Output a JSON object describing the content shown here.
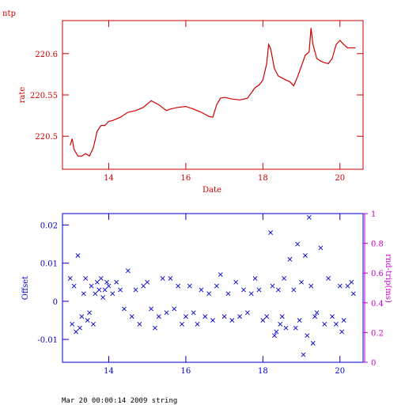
{
  "footer": {
    "text": "Mar 20 00:00:14 2009 string"
  },
  "chart_data": [
    {
      "type": "line",
      "title": "ntp",
      "xlabel": "Date",
      "ylabel": "rate",
      "xlim": [
        12.8,
        20.6
      ],
      "ylim": [
        220.46,
        220.64
      ],
      "xticks": [
        14,
        16,
        18,
        20
      ],
      "yticks": [
        220.5,
        220.55,
        220.6
      ],
      "ytick_labels": [
        "220.5",
        "220.55",
        "220.6"
      ],
      "grid": false,
      "color": "#cc0000",
      "series": [
        {
          "x": [
            13.0,
            13.05,
            13.1,
            13.2,
            13.3,
            13.4,
            13.5,
            13.6,
            13.7,
            13.8,
            13.9,
            14.0,
            14.1,
            14.3,
            14.5,
            14.7,
            14.9,
            15.1,
            15.3,
            15.5,
            15.6,
            15.8,
            16.0,
            16.2,
            16.4,
            16.6,
            16.7,
            16.8,
            16.9,
            17.0,
            17.2,
            17.4,
            17.6,
            17.8,
            17.9,
            18.0,
            18.1,
            18.15,
            18.2,
            18.3,
            18.4,
            18.6,
            18.7,
            18.8,
            18.9,
            19.0,
            19.1,
            19.2,
            19.25,
            19.3,
            19.4,
            19.5,
            19.6,
            19.7,
            19.8,
            19.9,
            20.0,
            20.1,
            20.2,
            20.3,
            20.4
          ],
          "y": [
            220.489,
            220.497,
            220.484,
            220.476,
            220.476,
            220.479,
            220.476,
            220.486,
            220.506,
            220.513,
            220.513,
            220.518,
            220.519,
            220.523,
            220.529,
            220.531,
            220.535,
            220.543,
            220.538,
            220.531,
            220.533,
            220.535,
            220.536,
            220.533,
            220.529,
            220.524,
            220.523,
            220.538,
            220.546,
            220.547,
            220.545,
            220.544,
            220.546,
            220.559,
            220.562,
            220.568,
            220.588,
            220.611,
            220.606,
            220.582,
            220.573,
            220.568,
            220.566,
            220.561,
            220.572,
            220.585,
            220.598,
            220.602,
            220.631,
            220.611,
            220.594,
            220.591,
            220.589,
            220.588,
            220.594,
            220.611,
            220.616,
            220.611,
            220.607,
            220.607,
            220.607
          ]
        }
      ]
    },
    {
      "type": "scatter",
      "ylabel": "Offset",
      "y2label": "rnd-trip(ms)",
      "xlim": [
        12.8,
        20.6
      ],
      "ylim": [
        -0.016,
        0.023
      ],
      "y2lim": [
        0,
        1
      ],
      "xticks": [
        14,
        16,
        18,
        20
      ],
      "yticks": [
        -0.01,
        0,
        0.01,
        0.02
      ],
      "ytick_labels": [
        "-0.01",
        "0",
        "0.01",
        "0.02"
      ],
      "y2ticks": [
        0,
        0.2,
        0.4,
        0.6,
        0.8,
        1
      ],
      "y2tick_labels": [
        "0",
        "0.2",
        "0.4",
        "0.6",
        "0.8",
        "1"
      ],
      "grid": false,
      "marker": "x",
      "color": "#0000cc",
      "color_secondary": "#cc00cc",
      "series": [
        {
          "x": [
            13.0,
            13.05,
            13.1,
            13.15,
            13.2,
            13.25,
            13.3,
            13.35,
            13.4,
            13.45,
            13.5,
            13.55,
            13.6,
            13.65,
            13.7,
            13.75,
            13.8,
            13.85,
            13.9,
            13.95,
            14.0,
            14.1,
            14.2,
            14.3,
            14.4,
            14.5,
            14.6,
            14.7,
            14.8,
            14.9,
            15.0,
            15.1,
            15.2,
            15.3,
            15.4,
            15.5,
            15.6,
            15.7,
            15.8,
            15.9,
            16.0,
            16.1,
            16.2,
            16.3,
            16.4,
            16.5,
            16.6,
            16.7,
            16.8,
            16.9,
            17.0,
            17.1,
            17.2,
            17.3,
            17.4,
            17.5,
            17.6,
            17.7,
            17.8,
            17.9,
            18.0,
            18.1,
            18.2,
            18.25,
            18.3,
            18.35,
            18.4,
            18.45,
            18.5,
            18.55,
            18.6,
            18.7,
            18.8,
            18.85,
            18.9,
            18.95,
            19.0,
            19.05,
            19.1,
            19.15,
            19.2,
            19.25,
            19.3,
            19.35,
            19.4,
            19.5,
            19.6,
            19.7,
            19.8,
            19.9,
            20.0,
            20.05,
            20.1,
            20.2,
            20.3,
            20.35
          ],
          "y": [
            0.006,
            -0.006,
            0.004,
            -0.008,
            0.012,
            -0.007,
            -0.004,
            0.002,
            0.006,
            -0.005,
            -0.003,
            0.004,
            -0.006,
            0.002,
            0.005,
            0.003,
            0.006,
            0.001,
            0.003,
            0.005,
            0.004,
            0.002,
            0.005,
            0.003,
            -0.002,
            0.008,
            -0.004,
            0.003,
            -0.006,
            0.004,
            0.005,
            -0.002,
            -0.007,
            -0.004,
            0.006,
            -0.003,
            0.006,
            -0.002,
            0.004,
            -0.006,
            -0.004,
            0.004,
            -0.003,
            -0.006,
            0.003,
            -0.004,
            0.002,
            -0.005,
            0.004,
            0.007,
            -0.004,
            0.002,
            -0.005,
            0.005,
            -0.004,
            0.003,
            -0.003,
            0.002,
            0.006,
            0.003,
            -0.005,
            -0.004,
            0.018,
            0.004,
            -0.009,
            -0.008,
            0.003,
            -0.006,
            -0.004,
            0.006,
            -0.007,
            0.011,
            0.003,
            -0.007,
            0.015,
            -0.005,
            0.005,
            -0.014,
            0.012,
            -0.009,
            0.022,
            0.004,
            -0.011,
            -0.004,
            -0.003,
            0.014,
            -0.006,
            0.006,
            -0.004,
            -0.006,
            0.004,
            -0.008,
            -0.005,
            0.004,
            0.005,
            0.002
          ]
        }
      ]
    }
  ]
}
